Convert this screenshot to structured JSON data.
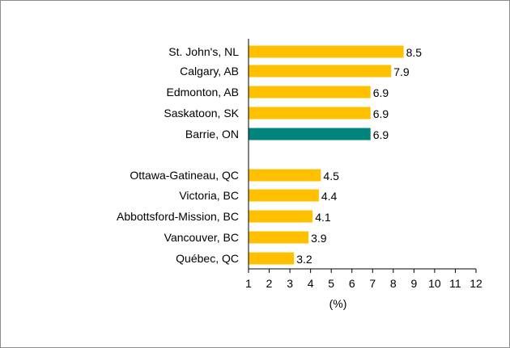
{
  "chart_data": {
    "type": "bar",
    "orientation": "horizontal",
    "categories": [
      "St. John's, NL",
      "Calgary, AB",
      "Edmonton, AB",
      "Saskatoon, SK",
      "Barrie, ON",
      "Ottawa-Gatineau, QC",
      "Victoria, BC",
      "Abbottsford-Mission, BC",
      "Vancouver, BC",
      "Québec, QC"
    ],
    "values": [
      8.5,
      7.9,
      6.9,
      6.9,
      6.9,
      4.5,
      4.4,
      4.1,
      3.9,
      3.2
    ],
    "value_labels": [
      "8.5",
      "7.9",
      "6.9",
      "6.9",
      "6.9",
      "4.5",
      "4.4",
      "4.1",
      "3.9",
      "3.2"
    ],
    "highlight_category": "Barrie, ON",
    "xlabel": "(%)",
    "xlim": [
      1,
      12
    ],
    "xticks": [
      "1",
      "2",
      "3",
      "4",
      "5",
      "6",
      "7",
      "8",
      "9",
      "10",
      "11",
      "12"
    ],
    "grid": false,
    "legend": "none",
    "colors": {
      "bar": "#FFC000",
      "highlight": "#00847C",
      "axis": "#000000",
      "border": "#8C8C8C"
    }
  }
}
